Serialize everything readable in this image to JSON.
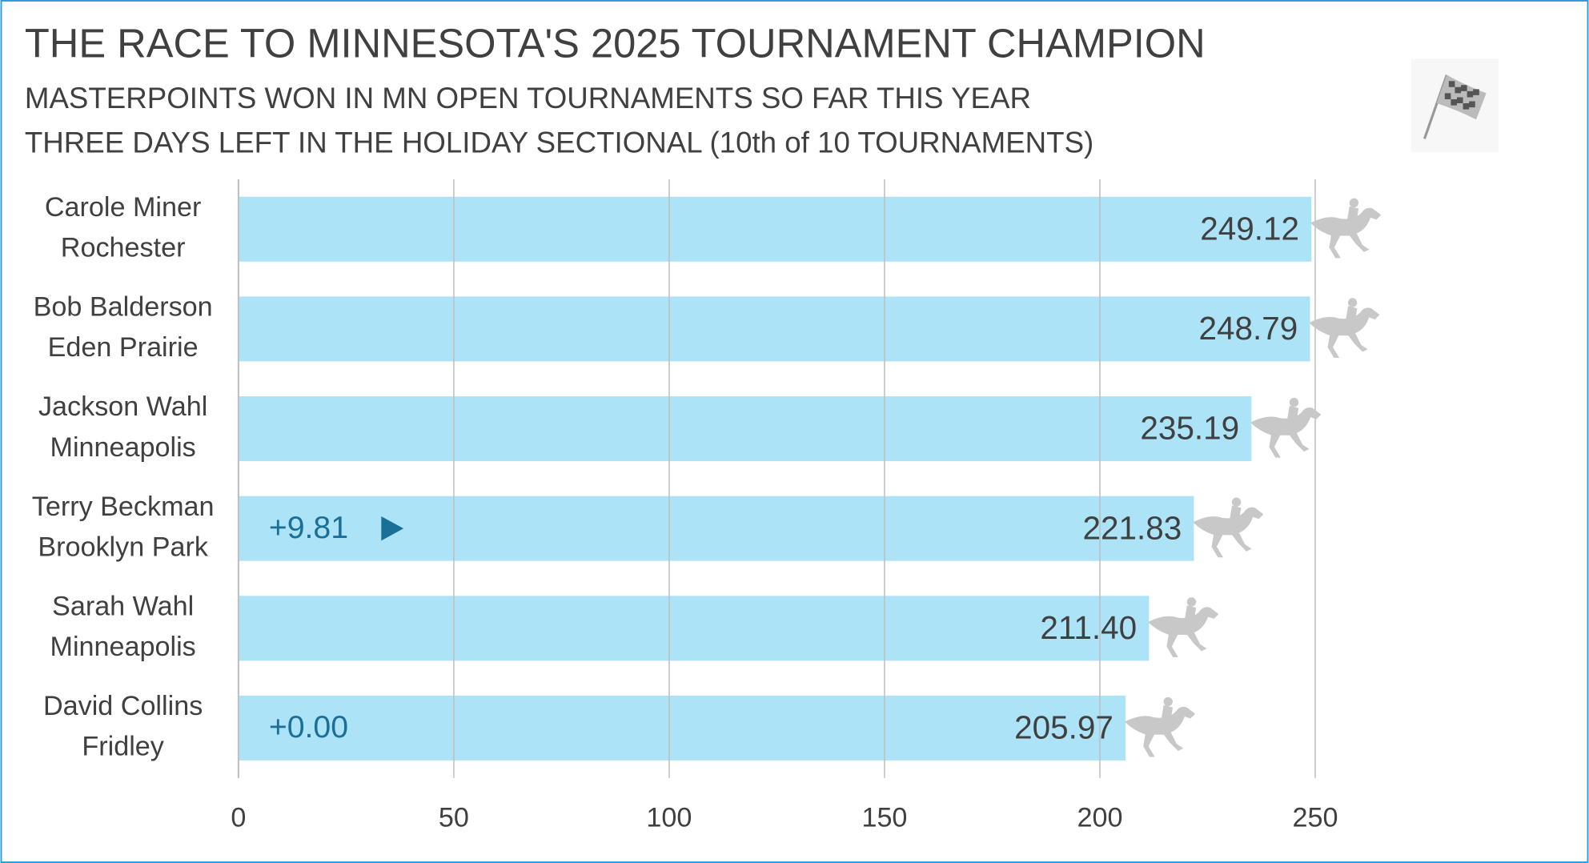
{
  "chart_data": {
    "type": "bar",
    "orientation": "horizontal",
    "title": "THE RACE TO MINNESOTA'S 2025 TOURNAMENT CHAMPION",
    "subtitle": "MASTERPOINTS WON IN MN OPEN TOURNAMENTS SO FAR THIS YEAR",
    "subtitle2": "THREE DAYS LEFT IN THE HOLIDAY SECTIONAL (10th of 10 TOURNAMENTS)",
    "categories": [
      "Carole Miner",
      "Bob Balderson",
      "Jackson Wahl",
      "Terry Beckman",
      "Sarah Wahl",
      "David Collins"
    ],
    "locations": [
      "Rochester",
      "Eden Prairie",
      "Minneapolis",
      "Brooklyn Park",
      "Minneapolis",
      "Fridley"
    ],
    "values": [
      249.12,
      248.79,
      235.19,
      221.83,
      211.4,
      205.97
    ],
    "value_labels": [
      "249.12",
      "248.79",
      "235.19",
      "221.83",
      "211.40",
      "205.97"
    ],
    "gains": [
      null,
      null,
      null,
      {
        "value": 9.81,
        "label": "+9.81"
      },
      null,
      {
        "value": 0,
        "label": "+0.00"
      }
    ],
    "gain_arrows": [
      false,
      false,
      false,
      true,
      false,
      false
    ],
    "color": "#ace3f7",
    "gain_color": "#1a6f99",
    "xlim": [
      0,
      300
    ],
    "xticks": [
      0,
      50,
      100,
      150,
      200,
      250
    ],
    "grid": true
  }
}
